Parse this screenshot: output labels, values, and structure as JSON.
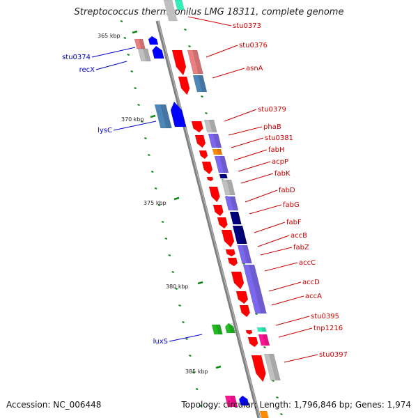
{
  "title": "Streptococcus thermophilus LMG 18311, complete genome",
  "accession": "Accession: NC_006448",
  "summary": "Topology: circular; Length: 1,796,846 bp; Genes: 1,974",
  "colors": {
    "backbone": "#808080",
    "red_gene": "#ff0000",
    "pink_gene": "#ec8080",
    "gray_gene": "#c0c0c0",
    "steelblue_gene": "#4f86b8",
    "blue_gene": "#0000ff",
    "purple_gene": "#7b68ee",
    "navy_gene": "#000080",
    "orange_gene": "#ff8c00",
    "green_gene": "#22bb22",
    "magenta_gene": "#ff1493",
    "cyan_gene": "#33eebb",
    "tick": "#118811",
    "label_forward": "#cc0000",
    "label_reverse": "#0000cc"
  },
  "scale_labels": [
    "365 kbp",
    "370 kbp",
    "375 kbp",
    "380 kbp",
    "385 kbp"
  ],
  "gene_labels_right": [
    "stu0373",
    "stu0376",
    "asnA",
    "stu0379",
    "phaB",
    "stu0381",
    "fabH",
    "acpP",
    "fabK",
    "fabD",
    "fabG",
    "fabF",
    "accB",
    "fabZ",
    "accC",
    "accD",
    "accA",
    "stu0395",
    "tnp1216",
    "stu0397"
  ],
  "gene_labels_left": [
    "stu0374",
    "recX",
    "lysC",
    "luxS"
  ]
}
